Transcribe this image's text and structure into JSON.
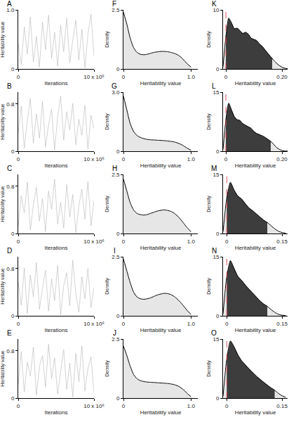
{
  "chart_data": [
    {
      "panel": "A",
      "type": "line",
      "x_label": "Iterations",
      "y_label": "Heritability value",
      "color": "#b5b5b5",
      "x": [
        0,
        400000,
        800000,
        1200000,
        1600000,
        2000000,
        2400000,
        2800000,
        3200000,
        3600000,
        4000000,
        4400000,
        4800000,
        5200000,
        5600000,
        6000000,
        6400000,
        6800000,
        7200000,
        7600000,
        8000000,
        8400000,
        8800000,
        9200000,
        9600000,
        10000000
      ],
      "values": [
        0.42,
        0.08,
        0.71,
        0.25,
        0.88,
        0.12,
        0.55,
        0.03,
        0.79,
        0.33,
        0.91,
        0.18,
        0.62,
        0.05,
        0.74,
        0.29,
        0.86,
        0.1,
        0.49,
        0.82,
        0.15,
        0.67,
        0.02,
        0.58,
        0.93,
        0.21
      ],
      "xlim": [
        0,
        10000000
      ],
      "ylim": [
        0,
        1.0
      ],
      "xticks": [
        0,
        {
          "value": 10000000,
          "label": "10 x 10⁶"
        }
      ],
      "yticks": [
        0,
        {
          "value": 1.0,
          "label": "1.0"
        }
      ]
    },
    {
      "panel": "B",
      "type": "line",
      "x_label": "Iterations",
      "y_label": "Heritability value",
      "color": "#b5b5b5",
      "x": [
        0,
        400000,
        800000,
        1200000,
        1600000,
        2000000,
        2400000,
        2800000,
        3200000,
        3600000,
        4000000,
        4400000,
        4800000,
        5200000,
        5600000,
        6000000,
        6400000,
        6800000,
        7200000,
        7600000,
        8000000,
        8400000,
        8800000,
        9200000,
        9600000,
        10000000
      ],
      "values": [
        0.31,
        0.76,
        0.05,
        0.52,
        0.89,
        0.14,
        0.63,
        0.22,
        0.84,
        0.07,
        0.45,
        0.71,
        0.02,
        0.58,
        0.93,
        0.19,
        0.67,
        0.36,
        0.81,
        0.11,
        0.54,
        0.27,
        0.78,
        0.04,
        0.61,
        0.38
      ],
      "xlim": [
        0,
        10000000
      ],
      "ylim": [
        0,
        1.0
      ],
      "xticks": [
        0,
        {
          "value": 10000000,
          "label": "10 x 10⁶"
        }
      ],
      "yticks": [
        0,
        0.8
      ]
    },
    {
      "panel": "C",
      "type": "line",
      "x_label": "Iterations",
      "y_label": "Heritability value",
      "color": "#b5b5b5",
      "x": [
        0,
        400000,
        800000,
        1200000,
        1600000,
        2000000,
        2400000,
        2800000,
        3200000,
        3600000,
        4000000,
        4400000,
        4800000,
        5200000,
        5600000,
        6000000,
        6400000,
        6800000,
        7200000,
        7600000,
        8000000,
        8400000,
        8800000,
        9200000,
        9600000,
        10000000
      ],
      "values": [
        0.12,
        0.64,
        0.35,
        0.87,
        0.06,
        0.49,
        0.78,
        0.21,
        0.59,
        0.03,
        0.72,
        0.41,
        0.92,
        0.16,
        0.53,
        0.09,
        0.83,
        0.28,
        0.66,
        0.01,
        0.47,
        0.75,
        0.24,
        0.88,
        0.13,
        0.56
      ],
      "xlim": [
        0,
        10000000
      ],
      "ylim": [
        0,
        1.0
      ],
      "xticks": [
        0,
        {
          "value": 10000000,
          "label": "10 x 10⁶"
        }
      ],
      "yticks": [
        0,
        0.8
      ]
    },
    {
      "panel": "D",
      "type": "line",
      "x_label": "Iterations",
      "y_label": "Heritability value",
      "color": "#b5b5b5",
      "x": [
        0,
        400000,
        800000,
        1200000,
        1600000,
        2000000,
        2400000,
        2800000,
        3200000,
        3600000,
        4000000,
        4400000,
        4800000,
        5200000,
        5600000,
        6000000,
        6400000,
        6800000,
        7200000,
        7600000,
        8000000,
        8400000,
        8800000,
        9200000,
        9600000,
        10000000
      ],
      "values": [
        0.57,
        0.18,
        0.81,
        0.04,
        0.69,
        0.32,
        0.9,
        0.11,
        0.46,
        0.77,
        0.08,
        0.63,
        0.26,
        0.85,
        0.02,
        0.51,
        0.73,
        0.17,
        0.94,
        0.38,
        0.06,
        0.66,
        0.29,
        0.8,
        0.14,
        0.48
      ],
      "xlim": [
        0,
        10000000
      ],
      "ylim": [
        0,
        1.0
      ],
      "xticks": [
        0,
        {
          "value": 10000000,
          "label": "10 x 10⁶"
        }
      ],
      "yticks": [
        0,
        0.8
      ]
    },
    {
      "panel": "E",
      "type": "line",
      "x_label": "Iterations",
      "y_label": "Heritability value",
      "color": "#b5b5b5",
      "x": [
        0,
        400000,
        800000,
        1200000,
        1600000,
        2000000,
        2400000,
        2800000,
        3200000,
        3600000,
        4000000,
        4400000,
        4800000,
        5200000,
        5600000,
        6000000,
        6400000,
        6800000,
        7200000,
        7600000,
        8000000,
        8400000,
        8800000,
        9200000,
        9600000,
        10000000
      ],
      "values": [
        0.23,
        0.79,
        0.1,
        0.61,
        0.37,
        0.86,
        0.05,
        0.54,
        0.72,
        0.19,
        0.91,
        0.33,
        0.68,
        0.07,
        0.45,
        0.82,
        0.15,
        0.59,
        0.02,
        0.76,
        0.28,
        0.88,
        0.12,
        0.5,
        0.7,
        0.09
      ],
      "xlim": [
        0,
        10000000
      ],
      "ylim": [
        0,
        1.0
      ],
      "xticks": [
        0,
        {
          "value": 10000000,
          "label": "10 x 10⁶"
        }
      ],
      "yticks": [
        0,
        0.8
      ]
    },
    {
      "panel": "F",
      "type": "area",
      "x_label": "Heritability value",
      "y_label": "Density",
      "color": "#e6e6e6",
      "x": [
        0,
        0.05,
        0.1,
        0.15,
        0.2,
        0.25,
        0.3,
        0.35,
        0.4,
        0.45,
        0.5,
        0.55,
        0.6,
        0.65,
        0.7,
        0.75,
        0.8,
        0.85,
        0.9,
        0.95,
        1.0
      ],
      "values": [
        2.4,
        1.9,
        1.3,
        0.9,
        0.7,
        0.62,
        0.6,
        0.62,
        0.66,
        0.7,
        0.72,
        0.74,
        0.74,
        0.73,
        0.7,
        0.66,
        0.6,
        0.5,
        0.35,
        0.2,
        0.08
      ],
      "xlim": [
        0,
        1.1
      ],
      "ylim": [
        0,
        2.5
      ],
      "xticks": [
        0,
        {
          "value": 1.0,
          "label": "1.0"
        }
      ],
      "yticks": [
        0,
        2.5
      ]
    },
    {
      "panel": "G",
      "type": "area",
      "x_label": "Heritability value",
      "y_label": "Density",
      "color": "#e6e6e6",
      "x": [
        0,
        0.05,
        0.1,
        0.15,
        0.2,
        0.25,
        0.3,
        0.35,
        0.4,
        0.45,
        0.5,
        0.55,
        0.6,
        0.65,
        0.7,
        0.75,
        0.8,
        0.85,
        0.9,
        0.95,
        1.0
      ],
      "values": [
        2.8,
        2.1,
        1.4,
        1.0,
        0.8,
        0.7,
        0.64,
        0.6,
        0.58,
        0.57,
        0.56,
        0.55,
        0.54,
        0.52,
        0.5,
        0.47,
        0.42,
        0.35,
        0.25,
        0.14,
        0.05
      ],
      "xlim": [
        0,
        1.1
      ],
      "ylim": [
        0,
        3.0
      ],
      "xticks": [
        0,
        {
          "value": 1.0,
          "label": "1.0"
        }
      ],
      "yticks": [
        0,
        {
          "value": 3.0,
          "label": "3.0"
        }
      ]
    },
    {
      "panel": "H",
      "type": "area",
      "x_label": "Heritability value",
      "y_label": "Density",
      "color": "#e6e6e6",
      "x": [
        0,
        0.05,
        0.1,
        0.15,
        0.2,
        0.25,
        0.3,
        0.35,
        0.4,
        0.45,
        0.5,
        0.55,
        0.6,
        0.65,
        0.7,
        0.75,
        0.8,
        0.85,
        0.9,
        0.95,
        1.0
      ],
      "values": [
        2.3,
        1.8,
        1.3,
        1.0,
        0.85,
        0.8,
        0.78,
        0.8,
        0.85,
        0.9,
        0.95,
        0.98,
        1.0,
        0.98,
        0.94,
        0.86,
        0.74,
        0.58,
        0.4,
        0.22,
        0.08
      ],
      "xlim": [
        0,
        1.1
      ],
      "ylim": [
        0,
        2.5
      ],
      "xticks": [
        0,
        {
          "value": 1.0,
          "label": "1.0"
        }
      ],
      "yticks": [
        0,
        2.5
      ]
    },
    {
      "panel": "I",
      "type": "area",
      "x_label": "Heritability value",
      "y_label": "Density",
      "color": "#e6e6e6",
      "x": [
        0,
        0.05,
        0.1,
        0.15,
        0.2,
        0.25,
        0.3,
        0.35,
        0.4,
        0.45,
        0.5,
        0.55,
        0.6,
        0.65,
        0.7,
        0.75,
        0.8,
        0.85,
        0.9,
        0.95,
        1.0
      ],
      "values": [
        2.4,
        1.9,
        1.4,
        1.0,
        0.8,
        0.72,
        0.7,
        0.72,
        0.76,
        0.82,
        0.88,
        0.92,
        0.95,
        0.94,
        0.9,
        0.82,
        0.7,
        0.55,
        0.38,
        0.2,
        0.06
      ],
      "xlim": [
        0,
        1.1
      ],
      "ylim": [
        0,
        2.5
      ],
      "xticks": [
        0,
        {
          "value": 1.0,
          "label": "1.0"
        }
      ],
      "yticks": [
        0,
        2.5
      ]
    },
    {
      "panel": "J",
      "type": "area",
      "x_label": "Heritability value",
      "y_label": "Density",
      "color": "#e6e6e6",
      "x": [
        0,
        0.05,
        0.1,
        0.15,
        0.2,
        0.25,
        0.3,
        0.35,
        0.4,
        0.45,
        0.5,
        0.55,
        0.6,
        0.65,
        0.7,
        0.75,
        0.8,
        0.85,
        0.9,
        0.95,
        1.0
      ],
      "values": [
        2.2,
        1.8,
        1.35,
        1.0,
        0.82,
        0.74,
        0.7,
        0.68,
        0.67,
        0.66,
        0.65,
        0.64,
        0.63,
        0.62,
        0.6,
        0.57,
        0.52,
        0.44,
        0.32,
        0.18,
        0.06
      ],
      "xlim": [
        0,
        1.1
      ],
      "ylim": [
        0,
        2.5
      ],
      "xticks": [
        0,
        {
          "value": 1.0,
          "label": "1.0"
        }
      ],
      "yticks": [
        0,
        2.5
      ]
    },
    {
      "panel": "K",
      "type": "area",
      "x_label": "Heritability value",
      "y_label": "Density",
      "color": "#e6e6e6",
      "x": [
        -0.01,
        0,
        0.01,
        0.02,
        0.03,
        0.04,
        0.05,
        0.06,
        0.07,
        0.08,
        0.09,
        0.1,
        0.11,
        0.12,
        0.13,
        0.14,
        0.15,
        0.16,
        0.165,
        0.17,
        0.18,
        0.19,
        0.2,
        0.21,
        0.22
      ],
      "values": [
        0.4,
        5.5,
        8.6,
        7.8,
        6.8,
        6.9,
        6.5,
        6.0,
        6.2,
        5.9,
        5.2,
        5.0,
        4.8,
        4.2,
        3.8,
        3.2,
        2.6,
        2.0,
        1.8,
        1.5,
        1.0,
        0.6,
        0.3,
        0.12,
        0.04
      ],
      "hpd": {
        "range": [
          0,
          0.165
        ],
        "color": "#3d3d3d"
      },
      "reference_line": {
        "x": 0,
        "color": "#e0505a",
        "line_style": "dash"
      },
      "xlim": [
        -0.01,
        0.22
      ],
      "ylim": [
        0,
        10
      ],
      "xticks": [
        0,
        {
          "value": 0.2,
          "label": "0.20"
        }
      ],
      "yticks": [
        0,
        10
      ]
    },
    {
      "panel": "L",
      "type": "area",
      "x_label": "Heritability value",
      "y_label": "Density",
      "color": "#e6e6e6",
      "x": [
        -0.01,
        0,
        0.01,
        0.02,
        0.03,
        0.04,
        0.05,
        0.06,
        0.07,
        0.08,
        0.09,
        0.1,
        0.11,
        0.12,
        0.13,
        0.14,
        0.15,
        0.16,
        0.17,
        0.18,
        0.19,
        0.2,
        0.21,
        0.22
      ],
      "values": [
        0.5,
        8,
        12.2,
        10.5,
        8.8,
        8.0,
        7.8,
        7.0,
        6.6,
        6.2,
        5.8,
        5.0,
        4.5,
        4.2,
        3.9,
        3.5,
        3.0,
        2.5,
        1.8,
        1.0,
        0.5,
        0.2,
        0.06,
        0.02
      ],
      "hpd": {
        "range": [
          0,
          0.16
        ],
        "color": "#3d3d3d"
      },
      "reference_line": {
        "x": 0,
        "color": "#e0505a",
        "line_style": "dash"
      },
      "xlim": [
        -0.01,
        0.22
      ],
      "ylim": [
        0,
        15
      ],
      "xticks": [
        0,
        {
          "value": 0.2,
          "label": "0.20"
        }
      ],
      "yticks": [
        0,
        15
      ]
    },
    {
      "panel": "M",
      "type": "area",
      "x_label": "Heritability value",
      "y_label": "Density",
      "color": "#e6e6e6",
      "x": [
        -0.01,
        0,
        0.01,
        0.02,
        0.03,
        0.04,
        0.05,
        0.06,
        0.07,
        0.08,
        0.09,
        0.1,
        0.11,
        0.12,
        0.13,
        0.14,
        0.15,
        0.16
      ],
      "values": [
        0.5,
        9,
        13,
        11,
        9.5,
        8.8,
        7.6,
        6.5,
        5.8,
        5.0,
        4.2,
        3.4,
        2.8,
        2.0,
        1.2,
        0.6,
        0.25,
        0.08
      ],
      "hpd": {
        "range": [
          0,
          0.11
        ],
        "color": "#3d3d3d"
      },
      "reference_line": {
        "x": 0,
        "color": "#e0505a",
        "line_style": "dash"
      },
      "xlim": [
        -0.01,
        0.165
      ],
      "ylim": [
        0,
        15
      ],
      "xticks": [
        0,
        0.15
      ],
      "yticks": [
        0,
        15
      ]
    },
    {
      "panel": "N",
      "type": "area",
      "x_label": "Heritability value",
      "y_label": "Density",
      "color": "#e6e6e6",
      "x": [
        -0.01,
        0,
        0.01,
        0.02,
        0.03,
        0.04,
        0.05,
        0.06,
        0.07,
        0.08,
        0.09,
        0.1,
        0.11,
        0.12,
        0.13,
        0.14,
        0.15,
        0.16
      ],
      "values": [
        0.5,
        10,
        14,
        12,
        10,
        9,
        7.8,
        6.8,
        5.8,
        4.8,
        3.8,
        3.0,
        2.4,
        1.6,
        0.9,
        0.4,
        0.15,
        0.05
      ],
      "hpd": {
        "range": [
          0,
          0.11
        ],
        "color": "#3d3d3d"
      },
      "reference_line": {
        "x": 0,
        "color": "#e0505a",
        "line_style": "dash"
      },
      "xlim": [
        -0.01,
        0.165
      ],
      "ylim": [
        0,
        15
      ],
      "xticks": [
        0,
        0.15
      ],
      "yticks": [
        0,
        15
      ]
    },
    {
      "panel": "O",
      "type": "area",
      "x_label": "Heritability value",
      "y_label": "Density",
      "color": "#e6e6e6",
      "x": [
        -0.01,
        0,
        0.01,
        0.02,
        0.03,
        0.04,
        0.05,
        0.06,
        0.07,
        0.08,
        0.09,
        0.1,
        0.11,
        0.12,
        0.13,
        0.14,
        0.15,
        0.16
      ],
      "values": [
        0.5,
        10,
        14.5,
        13,
        11,
        9.5,
        8.5,
        7.4,
        6.5,
        5.6,
        4.8,
        4.0,
        3.3,
        2.6,
        2.0,
        1.2,
        0.6,
        0.2
      ],
      "hpd": {
        "range": [
          0,
          0.13
        ],
        "color": "#3d3d3d"
      },
      "reference_line": {
        "x": 0,
        "color": "#e0505a",
        "line_style": "dash"
      },
      "xlim": [
        -0.01,
        0.165
      ],
      "ylim": [
        0,
        15
      ],
      "xticks": [
        0,
        0.15
      ],
      "yticks": [
        0,
        15
      ]
    }
  ]
}
